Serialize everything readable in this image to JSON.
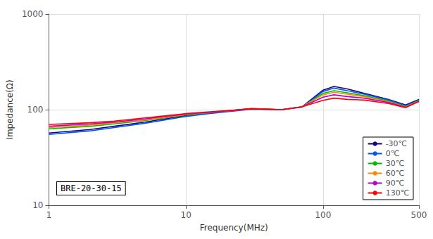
{
  "chart_data": {
    "type": "line",
    "xlabel": "Frequency(MHz)",
    "ylabel": "Impedance(Ω)",
    "annotation": "BRE-20-30-15",
    "log": true,
    "grid": true,
    "legend": "lower right",
    "xlim": [
      1,
      500
    ],
    "ylim": [
      10,
      1000
    ],
    "xticks": [
      1,
      10,
      100,
      500
    ],
    "yticks": [
      10,
      100,
      1000
    ],
    "x": [
      1,
      2,
      3,
      5,
      7,
      10,
      15,
      20,
      30,
      50,
      70,
      100,
      120,
      150,
      200,
      300,
      400,
      500
    ],
    "series": [
      {
        "name": "-30℃",
        "color": "#1a0080",
        "values": [
          57,
          62,
          67,
          74,
          80,
          87,
          93,
          97,
          103,
          100,
          107,
          160,
          175,
          165,
          148,
          128,
          112,
          128
        ]
      },
      {
        "name": "0℃",
        "color": "#0055ee",
        "values": [
          55,
          60,
          65,
          72,
          78,
          85,
          91,
          95,
          101,
          100,
          106,
          155,
          168,
          158,
          145,
          126,
          110,
          126
        ]
      },
      {
        "name": "30℃",
        "color": "#00bb00",
        "values": [
          63,
          67,
          71,
          77,
          82,
          88,
          93,
          97,
          102,
          100,
          107,
          148,
          158,
          150,
          140,
          123,
          108,
          124
        ]
      },
      {
        "name": "60℃",
        "color": "#ff8800",
        "values": [
          65,
          69,
          73,
          78,
          83,
          89,
          94,
          97,
          102,
          100,
          107,
          143,
          152,
          145,
          137,
          121,
          107,
          123
        ]
      },
      {
        "name": "90℃",
        "color": "#bb00cc",
        "values": [
          67,
          71,
          74,
          80,
          85,
          90,
          94,
          97,
          102,
          100,
          107,
          135,
          143,
          137,
          132,
          119,
          106,
          122
        ]
      },
      {
        "name": "130℃",
        "color": "#ff0000",
        "values": [
          70,
          73,
          76,
          82,
          86,
          91,
          95,
          98,
          102,
          100,
          107,
          125,
          132,
          128,
          126,
          116,
          105,
          122
        ]
      }
    ]
  }
}
